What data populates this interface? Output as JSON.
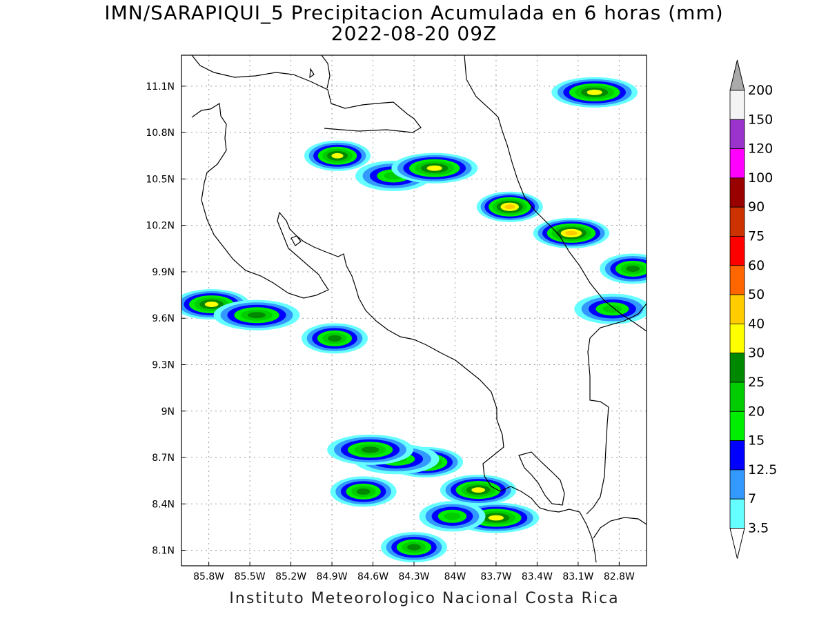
{
  "title_line1": "IMN/SARAPIQUI_5 Precipitacion Acumulada en 6 horas (mm)",
  "title_line2": "2022-08-20 09Z",
  "footer": "Instituto Meteorologico Nacional Costa Rica",
  "map": {
    "lon_range": [
      -86.0,
      -82.6
    ],
    "lat_range": [
      8.0,
      11.3
    ],
    "lon_ticks": [
      "85.8W",
      "85.5W",
      "85.2W",
      "84.9W",
      "84.6W",
      "84.3W",
      "84W",
      "83.7W",
      "83.4W",
      "83.1W",
      "82.8W"
    ],
    "lon_tick_values": [
      -85.8,
      -85.5,
      -85.2,
      -84.9,
      -84.6,
      -84.3,
      -84.0,
      -83.7,
      -83.4,
      -83.1,
      -82.8
    ],
    "lat_ticks": [
      "11.1N",
      "10.8N",
      "10.5N",
      "10.2N",
      "9.9N",
      "9.6N",
      "9.3N",
      "9N",
      "8.7N",
      "8.4N",
      "8.1N"
    ],
    "lat_tick_values": [
      11.1,
      10.8,
      10.5,
      10.2,
      9.9,
      9.6,
      9.3,
      9.0,
      8.7,
      8.4,
      8.1
    ],
    "gridlines": true
  },
  "colorbar": {
    "labels": [
      "3.5",
      "7",
      "12.5",
      "15",
      "20",
      "25",
      "30",
      "40",
      "50",
      "60",
      "75",
      "90",
      "100",
      "120",
      "150",
      "200"
    ],
    "colors": [
      "#66ffff",
      "#3399ff",
      "#0000ff",
      "#00ee00",
      "#00cc00",
      "#008800",
      "#ffff00",
      "#ffcc00",
      "#ff6600",
      "#ff0000",
      "#cc3300",
      "#990000",
      "#ff00ff",
      "#9933cc",
      "#f4f4f4",
      "#aaaaaa"
    ]
  },
  "precip_cells": [
    {
      "lon": -84.86,
      "lat": 10.65,
      "level": 6
    },
    {
      "lon": -84.45,
      "lat": 10.52,
      "level": 4
    },
    {
      "lon": -84.15,
      "lat": 10.57,
      "level": 6
    },
    {
      "lon": -83.6,
      "lat": 10.32,
      "level": 7
    },
    {
      "lon": -83.15,
      "lat": 10.15,
      "level": 7
    },
    {
      "lon": -82.98,
      "lat": 11.06,
      "level": 6
    },
    {
      "lon": -82.7,
      "lat": 9.92,
      "level": 5
    },
    {
      "lon": -85.78,
      "lat": 9.69,
      "level": 6
    },
    {
      "lon": -85.45,
      "lat": 9.62,
      "level": 5
    },
    {
      "lon": -84.88,
      "lat": 9.47,
      "level": 5
    },
    {
      "lon": -84.22,
      "lat": 8.67,
      "level": 6
    },
    {
      "lon": -84.43,
      "lat": 8.69,
      "level": 4
    },
    {
      "lon": -84.67,
      "lat": 8.48,
      "level": 5
    },
    {
      "lon": -83.83,
      "lat": 8.49,
      "level": 6
    },
    {
      "lon": -83.7,
      "lat": 8.31,
      "level": 6
    },
    {
      "lon": -84.3,
      "lat": 8.12,
      "level": 5
    },
    {
      "lon": -82.85,
      "lat": 9.66,
      "level": 4
    },
    {
      "lon": -84.62,
      "lat": 8.75,
      "level": 5
    },
    {
      "lon": -84.02,
      "lat": 8.32,
      "level": 4
    }
  ]
}
